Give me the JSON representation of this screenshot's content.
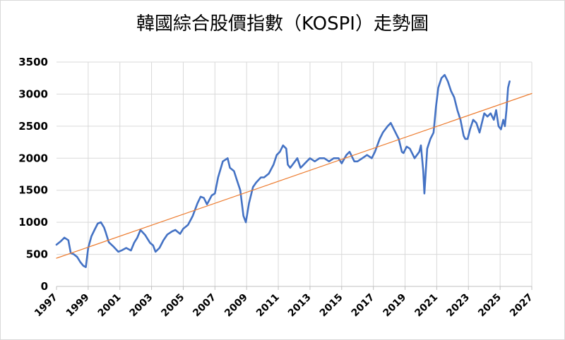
{
  "chart_data": {
    "type": "line",
    "title": "韓國綜合股價指數（KOSPI）走勢圖",
    "xlabel": "",
    "ylabel": "",
    "xlim": [
      1997,
      2027
    ],
    "ylim": [
      0,
      3500
    ],
    "x_ticks": [
      "1997",
      "1999",
      "2001",
      "2003",
      "2005",
      "2007",
      "2009",
      "2011",
      "2013",
      "2015",
      "2017",
      "2019",
      "2021",
      "2023",
      "2025",
      "2027"
    ],
    "y_ticks": [
      "0",
      "500",
      "1000",
      "1500",
      "2000",
      "2500",
      "3000",
      "3500"
    ],
    "grid": true,
    "legend": "none",
    "series": [
      {
        "kind": "index",
        "color": "#4472c4",
        "x": [
          1997.0,
          1997.25,
          1997.5,
          1997.75,
          1997.9,
          1998.1,
          1998.3,
          1998.5,
          1998.7,
          1998.85,
          1999.0,
          1999.2,
          1999.4,
          1999.6,
          1999.8,
          2000.0,
          2000.1,
          2000.3,
          2000.6,
          2000.9,
          2001.1,
          2001.4,
          2001.7,
          2001.9,
          2002.1,
          2002.3,
          2002.6,
          2002.9,
          2003.1,
          2003.25,
          2003.5,
          2003.75,
          2004.0,
          2004.3,
          2004.5,
          2004.8,
          2005.0,
          2005.3,
          2005.6,
          2005.9,
          2006.1,
          2006.3,
          2006.5,
          2006.8,
          2007.0,
          2007.2,
          2007.5,
          2007.8,
          2007.95,
          2008.2,
          2008.4,
          2008.6,
          2008.8,
          2008.95,
          2009.15,
          2009.4,
          2009.6,
          2009.9,
          2010.1,
          2010.4,
          2010.7,
          2010.9,
          2011.1,
          2011.3,
          2011.5,
          2011.6,
          2011.75,
          2011.9,
          2012.2,
          2012.4,
          2012.6,
          2012.8,
          2013.0,
          2013.3,
          2013.6,
          2013.9,
          2014.2,
          2014.5,
          2014.8,
          2015.0,
          2015.3,
          2015.5,
          2015.8,
          2016.0,
          2016.3,
          2016.6,
          2016.9,
          2017.1,
          2017.4,
          2017.6,
          2017.9,
          2018.1,
          2018.3,
          2018.6,
          2018.8,
          2018.9,
          2019.1,
          2019.3,
          2019.5,
          2019.6,
          2019.9,
          2020.0,
          2020.15,
          2020.22,
          2020.4,
          2020.6,
          2020.8,
          2020.95,
          2021.1,
          2021.3,
          2021.5,
          2021.7,
          2021.9,
          2022.1,
          2022.3,
          2022.5,
          2022.7,
          2022.8,
          2022.95,
          2023.1,
          2023.3,
          2023.5,
          2023.7,
          2023.85,
          2024.0,
          2024.2,
          2024.4,
          2024.6,
          2024.75,
          2024.9,
          2025.05,
          2025.2,
          2025.3,
          2025.4,
          2025.5,
          2025.6
        ],
        "y": [
          650,
          700,
          760,
          720,
          520,
          500,
          460,
          380,
          320,
          300,
          600,
          780,
          880,
          980,
          1000,
          920,
          850,
          690,
          620,
          540,
          560,
          600,
          560,
          680,
          760,
          880,
          800,
          680,
          640,
          540,
          600,
          720,
          810,
          860,
          880,
          820,
          900,
          960,
          1100,
          1300,
          1400,
          1380,
          1280,
          1420,
          1450,
          1700,
          1950,
          2000,
          1850,
          1800,
          1650,
          1500,
          1100,
          1000,
          1300,
          1550,
          1620,
          1700,
          1700,
          1760,
          1900,
          2050,
          2100,
          2200,
          2150,
          1900,
          1850,
          1900,
          2000,
          1850,
          1900,
          1950,
          2000,
          1950,
          2000,
          2000,
          1950,
          2000,
          2000,
          1920,
          2050,
          2100,
          1950,
          1950,
          2000,
          2050,
          2000,
          2100,
          2300,
          2400,
          2500,
          2550,
          2450,
          2300,
          2100,
          2080,
          2180,
          2150,
          2050,
          2000,
          2100,
          2200,
          1800,
          1450,
          2150,
          2300,
          2400,
          2800,
          3100,
          3250,
          3300,
          3200,
          3050,
          2950,
          2750,
          2600,
          2350,
          2300,
          2300,
          2450,
          2600,
          2550,
          2400,
          2550,
          2700,
          2650,
          2700,
          2600,
          2750,
          2500,
          2450,
          2600,
          2500,
          2750,
          3100,
          3200
        ]
      },
      {
        "kind": "trend",
        "color": "#ed7d31",
        "x": [
          1997,
          2027
        ],
        "y": [
          440,
          3010
        ]
      }
    ]
  }
}
